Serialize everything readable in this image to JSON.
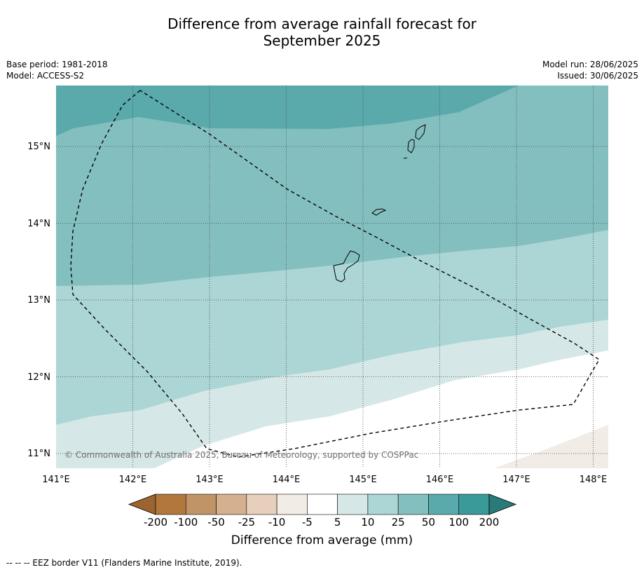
{
  "title_line1": "Difference from average rainfall forecast for",
  "title_line2": "September 2025",
  "base_period": "Base period: 1981-2018",
  "model": "Model: ACCESS-S2",
  "model_run": "Model run: 28/06/2025",
  "issued": "Issued: 30/06/2025",
  "copyright": "© Commonwealth of Australia 2025, Bureau of Meteorology, supported by COSPPac",
  "footer": "--  --  -- EEZ border V11 (Flanders Marine Institute, 2019).",
  "map": {
    "lon_range": [
      141,
      148.2
    ],
    "lat_range": [
      10.8,
      15.8
    ],
    "lon_ticks": [
      "141°E",
      "142°E",
      "143°E",
      "144°E",
      "145°E",
      "146°E",
      "147°E",
      "148°E"
    ],
    "lat_ticks": [
      "15°N",
      "14°N",
      "13°N",
      "12°N",
      "11°N"
    ]
  },
  "colorbar": {
    "label": "Difference from average (mm)",
    "ticks": [
      "-200",
      "-100",
      "-50",
      "-25",
      "-10",
      "-5",
      "5",
      "10",
      "25",
      "50",
      "100",
      "200"
    ],
    "colors": [
      "#9c6530",
      "#b1773d",
      "#c19468",
      "#d4b08f",
      "#e6d0bc",
      "#f2ece6",
      "#ffffff",
      "#d5e8e7",
      "#acd5d5",
      "#84bfbf",
      "#5aaaab",
      "#3a9a99",
      "#2b7a7a"
    ]
  }
}
